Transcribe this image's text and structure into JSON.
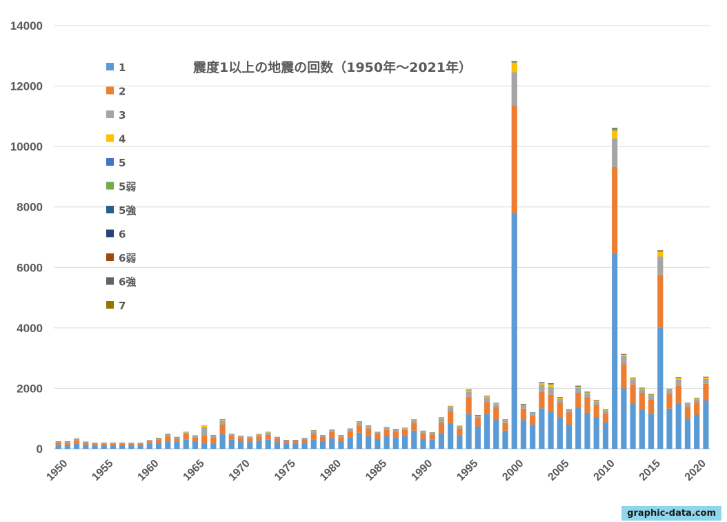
{
  "chart_data": {
    "type": "bar",
    "stacked": true,
    "title": "震度1以上の地震の回数（1950年～2021年）",
    "xlabel": "",
    "ylabel": "",
    "ylim": [
      0,
      14000
    ],
    "yticks": [
      0,
      2000,
      4000,
      6000,
      8000,
      10000,
      12000,
      14000
    ],
    "xticks": [
      1950,
      1955,
      1960,
      1965,
      1970,
      1975,
      1980,
      1985,
      1990,
      1995,
      2000,
      2005,
      2010,
      2015,
      2020
    ],
    "grid": true,
    "legend_position": "top-left",
    "x": [
      1950,
      1951,
      1952,
      1953,
      1954,
      1955,
      1956,
      1957,
      1958,
      1959,
      1960,
      1961,
      1962,
      1963,
      1964,
      1965,
      1966,
      1967,
      1968,
      1969,
      1970,
      1971,
      1972,
      1973,
      1974,
      1975,
      1976,
      1977,
      1978,
      1979,
      1980,
      1981,
      1982,
      1983,
      1984,
      1985,
      1986,
      1987,
      1988,
      1989,
      1990,
      1991,
      1992,
      1993,
      1994,
      1995,
      1996,
      1997,
      1998,
      1999,
      2000,
      2001,
      2002,
      2003,
      2004,
      2005,
      2006,
      2007,
      2008,
      2009,
      2010,
      2011,
      2012,
      2013,
      2014,
      2015,
      2016,
      2017,
      2018,
      2019,
      2020,
      2021
    ],
    "series": [
      {
        "name": "1",
        "color": "#5b9bd5",
        "values": [
          130,
          130,
          180,
          140,
          120,
          120,
          120,
          120,
          130,
          130,
          180,
          200,
          250,
          230,
          300,
          260,
          190,
          190,
          480,
          300,
          240,
          220,
          270,
          300,
          220,
          190,
          180,
          210,
          300,
          260,
          350,
          250,
          380,
          530,
          420,
          320,
          420,
          380,
          430,
          600,
          330,
          300,
          520,
          850,
          450,
          1150,
          740,
          1150,
          980,
          600,
          7800,
          950,
          790,
          1340,
          1210,
          1040,
          800,
          1370,
          1190,
          1050,
          870,
          6470,
          2000,
          1510,
          1290,
          1170,
          4000,
          1330,
          1510,
          1000,
          1130,
          1600
        ]
      },
      {
        "name": "2",
        "color": "#ed7d31",
        "values": [
          80,
          80,
          100,
          60,
          50,
          50,
          50,
          50,
          40,
          40,
          70,
          110,
          160,
          100,
          180,
          120,
          260,
          190,
          320,
          130,
          130,
          120,
          140,
          160,
          120,
          70,
          80,
          100,
          200,
          130,
          200,
          130,
          200,
          240,
          230,
          180,
          200,
          190,
          190,
          250,
          180,
          170,
          340,
          400,
          220,
          570,
          280,
          390,
          390,
          250,
          3550,
          380,
          300,
          550,
          580,
          480,
          400,
          480,
          500,
          400,
          310,
          2850,
          800,
          620,
          560,
          470,
          1760,
          480,
          570,
          370,
          400,
          550
        ]
      },
      {
        "name": "3",
        "color": "#a5a5a5",
        "values": [
          30,
          30,
          45,
          30,
          25,
          25,
          25,
          25,
          20,
          20,
          30,
          40,
          70,
          50,
          60,
          50,
          260,
          60,
          140,
          50,
          50,
          50,
          60,
          80,
          40,
          30,
          30,
          40,
          90,
          50,
          70,
          60,
          70,
          110,
          100,
          50,
          80,
          70,
          60,
          100,
          70,
          60,
          150,
          130,
          70,
          170,
          70,
          150,
          110,
          100,
          1110,
          110,
          80,
          230,
          250,
          130,
          80,
          160,
          140,
          120,
          90,
          950,
          260,
          170,
          130,
          130,
          600,
          130,
          210,
          120,
          110,
          160
        ]
      },
      {
        "name": "4",
        "color": "#ffc000",
        "values": [
          5,
          5,
          15,
          5,
          5,
          5,
          5,
          5,
          5,
          5,
          5,
          10,
          15,
          10,
          15,
          10,
          50,
          15,
          30,
          10,
          10,
          10,
          15,
          15,
          10,
          5,
          5,
          5,
          20,
          10,
          15,
          10,
          15,
          25,
          20,
          10,
          15,
          15,
          15,
          20,
          15,
          15,
          30,
          30,
          20,
          50,
          15,
          50,
          30,
          20,
          320,
          30,
          20,
          60,
          80,
          40,
          20,
          50,
          40,
          30,
          20,
          260,
          60,
          40,
          30,
          30,
          160,
          30,
          60,
          20,
          30,
          50
        ]
      },
      {
        "name": "5",
        "color": "#4472c4",
        "values": [
          2,
          2,
          5,
          2,
          2,
          2,
          2,
          2,
          2,
          2,
          2,
          3,
          5,
          3,
          5,
          3,
          5,
          3,
          10,
          3,
          3,
          3,
          5,
          5,
          3,
          2,
          2,
          2,
          5,
          3,
          5,
          3,
          5,
          5,
          5,
          3,
          3,
          3,
          3,
          5,
          3,
          3,
          5,
          10,
          3,
          5,
          5,
          5,
          5,
          3,
          10,
          5,
          5,
          5,
          10,
          5,
          3,
          5,
          5,
          5,
          3,
          20,
          5,
          5,
          5,
          5,
          10,
          5,
          5,
          3,
          5,
          10
        ]
      },
      {
        "name": "5弱",
        "color": "#70ad47",
        "values": [
          0,
          0,
          0,
          0,
          0,
          0,
          0,
          0,
          0,
          0,
          0,
          0,
          0,
          0,
          0,
          0,
          0,
          0,
          0,
          0,
          0,
          0,
          0,
          0,
          0,
          0,
          0,
          0,
          0,
          0,
          0,
          0,
          0,
          0,
          0,
          0,
          0,
          0,
          0,
          0,
          0,
          0,
          0,
          0,
          0,
          5,
          3,
          5,
          3,
          2,
          20,
          5,
          5,
          10,
          20,
          5,
          3,
          10,
          5,
          5,
          5,
          40,
          5,
          5,
          3,
          3,
          20,
          3,
          5,
          3,
          3,
          5
        ]
      },
      {
        "name": "5強",
        "color": "#255e91",
        "values": [
          0,
          0,
          0,
          0,
          0,
          0,
          0,
          0,
          0,
          0,
          0,
          0,
          0,
          0,
          0,
          0,
          0,
          0,
          0,
          0,
          0,
          0,
          0,
          0,
          0,
          0,
          0,
          0,
          0,
          0,
          0,
          0,
          0,
          0,
          0,
          0,
          0,
          0,
          0,
          0,
          0,
          0,
          0,
          0,
          0,
          3,
          2,
          3,
          2,
          0,
          10,
          3,
          3,
          5,
          10,
          3,
          2,
          5,
          3,
          2,
          3,
          15,
          3,
          3,
          2,
          2,
          10,
          2,
          3,
          2,
          2,
          3
        ]
      },
      {
        "name": "6",
        "color": "#264478",
        "values": [
          0,
          0,
          0,
          0,
          0,
          0,
          0,
          0,
          0,
          0,
          0,
          0,
          0,
          0,
          0,
          0,
          0,
          0,
          0,
          0,
          0,
          0,
          0,
          0,
          0,
          0,
          0,
          0,
          0,
          0,
          0,
          0,
          0,
          0,
          0,
          0,
          0,
          0,
          0,
          0,
          0,
          0,
          0,
          0,
          0,
          0,
          0,
          0,
          0,
          0,
          0,
          0,
          0,
          0,
          0,
          0,
          0,
          0,
          0,
          0,
          0,
          0,
          0,
          0,
          0,
          0,
          0,
          0,
          0,
          0,
          0,
          0
        ]
      },
      {
        "name": "6弱",
        "color": "#9e480e",
        "values": [
          0,
          0,
          0,
          0,
          0,
          0,
          0,
          0,
          0,
          0,
          0,
          0,
          0,
          0,
          0,
          0,
          0,
          0,
          0,
          0,
          0,
          0,
          0,
          0,
          0,
          0,
          0,
          0,
          0,
          0,
          0,
          0,
          0,
          0,
          0,
          0,
          0,
          0,
          0,
          0,
          0,
          0,
          0,
          0,
          0,
          2,
          0,
          0,
          0,
          0,
          5,
          2,
          0,
          3,
          5,
          2,
          0,
          3,
          3,
          2,
          0,
          8,
          2,
          2,
          0,
          0,
          6,
          0,
          3,
          2,
          0,
          2
        ]
      },
      {
        "name": "6強",
        "color": "#636363",
        "values": [
          0,
          0,
          0,
          0,
          0,
          0,
          0,
          0,
          0,
          0,
          0,
          0,
          0,
          0,
          0,
          0,
          0,
          0,
          0,
          0,
          0,
          0,
          0,
          0,
          0,
          0,
          0,
          0,
          0,
          0,
          0,
          0,
          0,
          0,
          0,
          0,
          0,
          0,
          0,
          0,
          0,
          0,
          0,
          0,
          0,
          0,
          0,
          0,
          0,
          0,
          2,
          0,
          0,
          2,
          2,
          0,
          0,
          2,
          2,
          0,
          0,
          3,
          0,
          0,
          0,
          0,
          2,
          0,
          0,
          0,
          0,
          0
        ]
      },
      {
        "name": "7",
        "color": "#997300",
        "values": [
          0,
          0,
          0,
          0,
          0,
          0,
          0,
          0,
          0,
          0,
          0,
          0,
          0,
          0,
          0,
          0,
          0,
          0,
          0,
          0,
          0,
          0,
          0,
          0,
          0,
          0,
          0,
          0,
          0,
          0,
          0,
          0,
          0,
          0,
          0,
          0,
          0,
          0,
          0,
          0,
          0,
          0,
          0,
          0,
          0,
          1,
          0,
          0,
          0,
          0,
          0,
          0,
          0,
          0,
          1,
          0,
          0,
          0,
          0,
          0,
          0,
          2,
          0,
          0,
          0,
          0,
          2,
          0,
          1,
          0,
          0,
          0
        ]
      }
    ]
  },
  "watermark": "graphic-data.com"
}
